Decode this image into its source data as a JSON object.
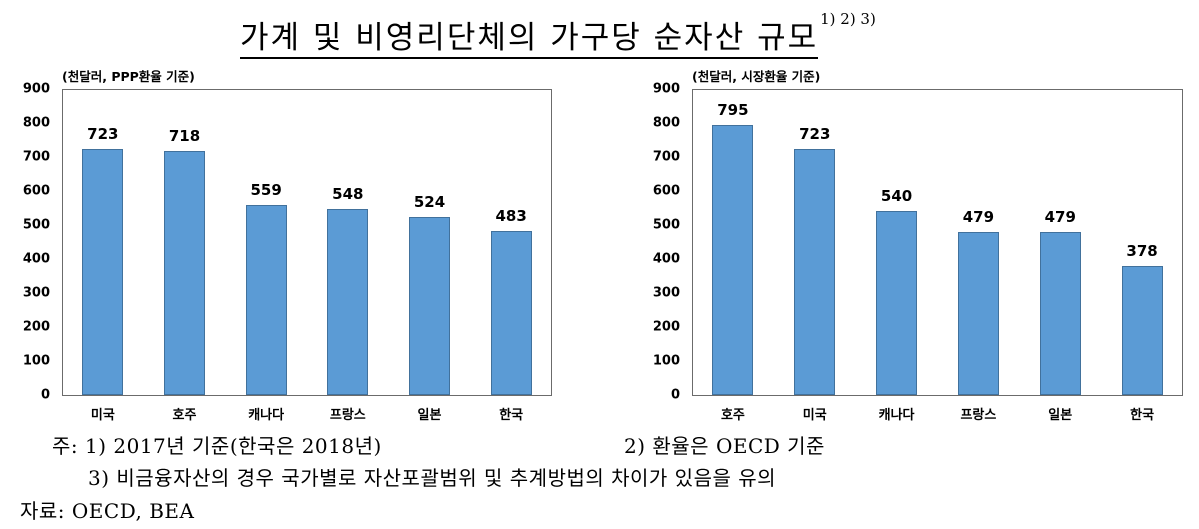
{
  "title": {
    "main": "가계 및 비영리단체의 가구당 순자산 규모",
    "superscript": "1) 2) 3)"
  },
  "chart_data": [
    {
      "type": "bar",
      "title": "가계 및 비영리단체의 가구당 순자산 규모 (PPP환율 기준)",
      "ylabel": "(천달러, PPP환율 기준)",
      "xlabel": "",
      "categories": [
        "미국",
        "호주",
        "캐나다",
        "프랑스",
        "일본",
        "한국"
      ],
      "values": [
        723,
        718,
        559,
        548,
        524,
        483
      ],
      "value_labels": [
        "723",
        "718",
        "559",
        "548",
        "524",
        "483"
      ],
      "yticks": [
        "900",
        "800",
        "700",
        "600",
        "500",
        "400",
        "300",
        "200",
        "100",
        "0"
      ],
      "ylim": [
        0,
        900
      ],
      "grid": false,
      "legend": null,
      "bar_color": "#5b9bd5"
    },
    {
      "type": "bar",
      "title": "가계 및 비영리단체의 가구당 순자산 규모 (시장환율 기준)",
      "ylabel": "(천달러, 시장환율 기준)",
      "xlabel": "",
      "categories": [
        "호주",
        "미국",
        "캐나다",
        "프랑스",
        "일본",
        "한국"
      ],
      "values": [
        795,
        723,
        540,
        479,
        479,
        378
      ],
      "value_labels": [
        "795",
        "723",
        "540",
        "479",
        "479",
        "378"
      ],
      "yticks": [
        "900",
        "800",
        "700",
        "600",
        "500",
        "400",
        "300",
        "200",
        "100",
        "0"
      ],
      "ylim": [
        0,
        900
      ],
      "grid": false,
      "legend": null,
      "bar_color": "#5b9bd5"
    }
  ],
  "notes": {
    "note1": "주: 1) 2017년 기준(한국은 2018년)",
    "note2": "2) 환율은 OECD 기준",
    "note3": "3) 비금융자산의 경우 국가별로 자산포괄범위 및 추계방법의 차이가 있음을 유의",
    "source": "자료: OECD, BEA"
  }
}
